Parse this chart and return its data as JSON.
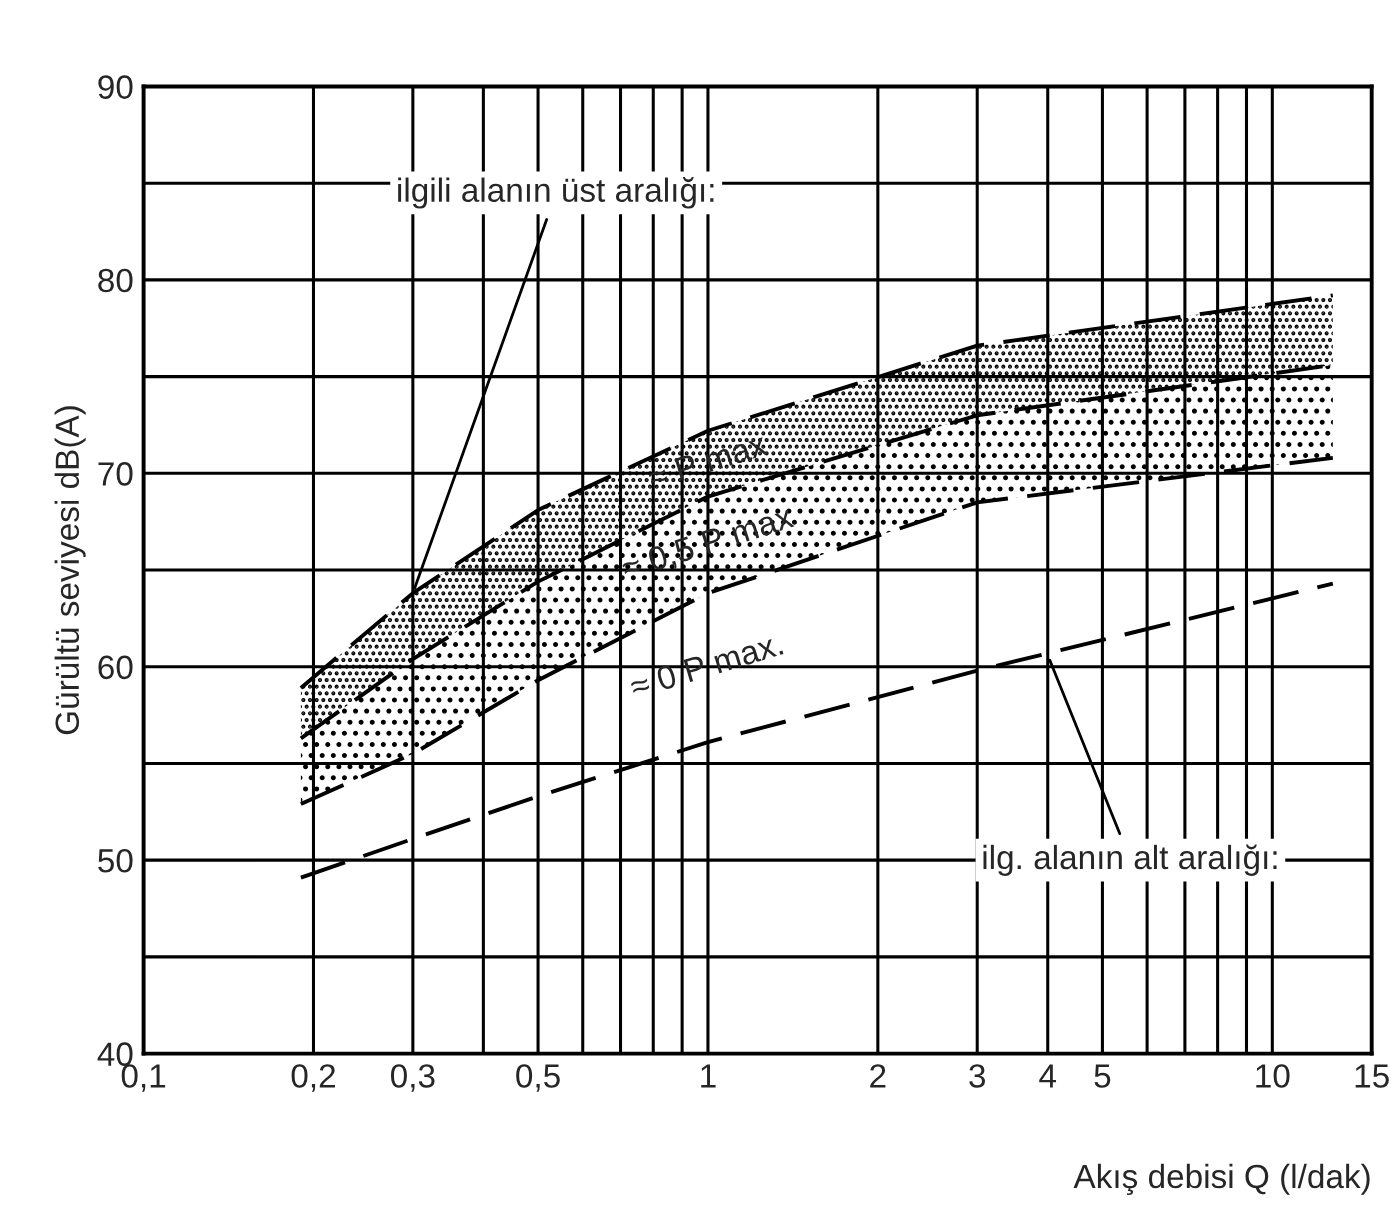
{
  "chart_data": {
    "type": "line",
    "xlabel": "Akış debisi Q (l/dak)",
    "ylabel": "Gürültü seviyesi dB(A)",
    "x": [
      0.19,
      0.3,
      0.5,
      1,
      3,
      12.8
    ],
    "series": [
      {
        "color": "#000000",
        "values": [
          58.9,
          63.8,
          68.1,
          72.2,
          76.6,
          79.2
        ],
        "lower": [
          56.3,
          60.4,
          64.4,
          68.8,
          73.0,
          75.6
        ],
        "upper": [
          58.9,
          63.8,
          68.1,
          72.2,
          76.6,
          79.2
        ]
      },
      {
        "color": "#000000",
        "values": [
          56.3,
          60.4,
          64.4,
          68.8,
          73.0,
          75.6
        ],
        "lower": [
          52.9,
          55.5,
          59.3,
          63.8,
          68.5,
          70.8
        ],
        "upper": [
          56.3,
          60.4,
          64.4,
          68.8,
          73.0,
          75.6
        ]
      },
      {
        "color": "#000000",
        "values": [
          52.9,
          55.5,
          59.3,
          63.8,
          68.5,
          70.8
        ]
      },
      {
        "color": "#000000",
        "values": [
          49.1,
          51.1,
          53.3,
          56.1,
          59.8,
          64.3
        ]
      }
    ],
    "log": "x",
    "line_style": "dashed",
    "marker": "none",
    "grid": true,
    "legend": false,
    "xlim": [
      0.1,
      15
    ],
    "ylim": [
      40,
      90
    ],
    "xticks": [
      {
        "value": 0.1,
        "label": "0,1"
      },
      {
        "value": 0.2,
        "label": "0,2"
      },
      {
        "value": 0.3,
        "label": "0,3"
      },
      {
        "value": 0.4,
        "label": null
      },
      {
        "value": 0.5,
        "label": "0,5"
      },
      {
        "value": 0.6,
        "label": null
      },
      {
        "value": 0.7,
        "label": null
      },
      {
        "value": 0.8,
        "label": null
      },
      {
        "value": 0.9,
        "label": null
      },
      1,
      2,
      3,
      4,
      5,
      {
        "value": 6,
        "label": null
      },
      {
        "value": 7,
        "label": null
      },
      {
        "value": 8,
        "label": null
      },
      {
        "value": 9,
        "label": null
      },
      10,
      15
    ],
    "yticks": [
      40,
      {
        "value": 45,
        "label": null
      },
      50,
      {
        "value": 55,
        "label": null
      },
      60,
      {
        "value": 65,
        "label": null
      },
      70,
      {
        "value": 75,
        "label": null
      },
      80,
      {
        "value": 85,
        "label": null
      },
      90
    ],
    "annotations": [
      "≈ P max",
      "≈ 0,5 P max",
      "≈ 0 P max.",
      {
        "text": "ilgili alanın üst aralığı:",
        "x": 0.3,
        "y": 63.8
      },
      {
        "text": "ilg. alanın alt aralığı:",
        "x": 4,
        "y": 60.6
      }
    ]
  }
}
